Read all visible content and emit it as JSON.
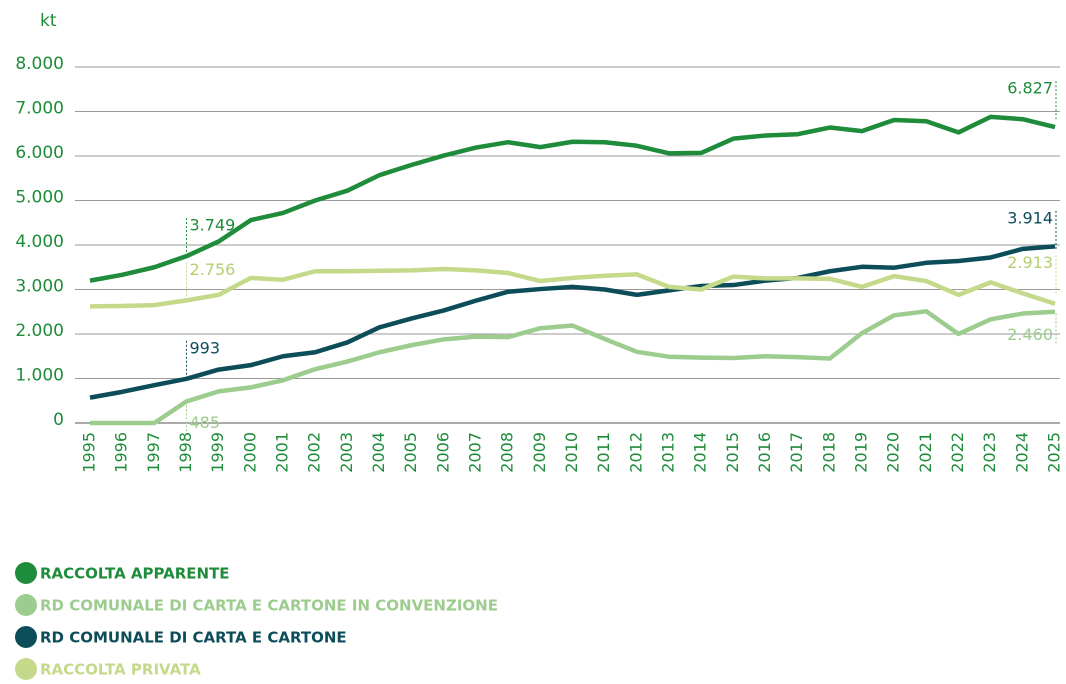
{
  "chart_data": {
    "type": "line",
    "y_unit": "kt",
    "categories": [
      "1995",
      "1996",
      "1997",
      "1998",
      "1999",
      "2000",
      "2001",
      "2002",
      "2003",
      "2004",
      "2005",
      "2006",
      "2007",
      "2008",
      "2009",
      "2010",
      "2011",
      "2012",
      "2013",
      "2014",
      "2015",
      "2016",
      "2017",
      "2018",
      "2019",
      "2020",
      "2021",
      "2022",
      "2023",
      "2024",
      "2025"
    ],
    "ylim": [
      0,
      8000
    ],
    "yticks": [
      0,
      {
        "value": 1000,
        "label": "1.000"
      },
      {
        "value": 2000,
        "label": "2.000"
      },
      {
        "value": 3000,
        "label": "3.000"
      },
      {
        "value": 4000,
        "label": "4.000"
      },
      {
        "value": 5000,
        "label": "5.000"
      },
      {
        "value": 6000,
        "label": "6.000"
      },
      {
        "value": 7000,
        "label": "7.000"
      },
      {
        "value": 8000,
        "label": "8.000"
      }
    ],
    "grid": true,
    "series": [
      {
        "name": "RACCOLTA APPARENTE",
        "color": "#1e8c3a",
        "values": [
          3200,
          3330,
          3500,
          3749,
          4080,
          4560,
          4720,
          5000,
          5220,
          5570,
          5800,
          6010,
          6190,
          6310,
          6200,
          6320,
          6310,
          6230,
          6060,
          6070,
          6390,
          6460,
          6490,
          6640,
          6560,
          6810,
          6780,
          6530,
          6880,
          6827,
          6650
        ],
        "value_labels": [
          null,
          null,
          null,
          "3.749",
          null,
          null,
          null,
          null,
          null,
          null,
          null,
          null,
          null,
          null,
          null,
          null,
          null,
          null,
          null,
          null,
          null,
          null,
          null,
          null,
          null,
          null,
          null,
          null,
          null,
          "6.827",
          null
        ]
      },
      {
        "name": "RD COMUNALE DI CARTA E CARTONE IN CONVENZIONE",
        "color": "#9ccc8e",
        "values": [
          0,
          0,
          0,
          485,
          710,
          800,
          960,
          1210,
          1380,
          1590,
          1750,
          1880,
          1940,
          1930,
          2130,
          2190,
          1890,
          1600,
          1490,
          1470,
          1460,
          1500,
          1480,
          1450,
          2020,
          2420,
          2510,
          2000,
          2330,
          2460,
          2500
        ],
        "value_labels": [
          null,
          null,
          null,
          "485",
          null,
          null,
          null,
          null,
          null,
          null,
          null,
          null,
          null,
          null,
          null,
          null,
          null,
          null,
          null,
          null,
          null,
          null,
          null,
          null,
          null,
          null,
          null,
          null,
          null,
          "2.460",
          null
        ]
      },
      {
        "name": "RD COMUNALE DI CARTA E CARTONE",
        "color": "#0d4d5a",
        "values": [
          570,
          700,
          850,
          993,
          1200,
          1300,
          1500,
          1590,
          1810,
          2150,
          2350,
          2530,
          2750,
          2950,
          3010,
          3060,
          3000,
          2880,
          2980,
          3080,
          3100,
          3200,
          3260,
          3410,
          3510,
          3490,
          3600,
          3640,
          3720,
          3914,
          3970
        ],
        "value_labels": [
          null,
          null,
          null,
          "993",
          null,
          null,
          null,
          null,
          null,
          null,
          null,
          null,
          null,
          null,
          null,
          null,
          null,
          null,
          null,
          null,
          null,
          null,
          null,
          null,
          null,
          null,
          null,
          null,
          null,
          "3.914",
          null
        ]
      },
      {
        "name": "RACCOLTA PRIVATA",
        "color": "#c5d98a",
        "values": [
          2620,
          2630,
          2650,
          2756,
          2880,
          3260,
          3220,
          3410,
          3410,
          3420,
          3430,
          3460,
          3430,
          3370,
          3190,
          3260,
          3310,
          3340,
          3060,
          3000,
          3290,
          3250,
          3250,
          3240,
          3060,
          3300,
          3190,
          2880,
          3160,
          2913,
          2680
        ],
        "value_labels": [
          null,
          null,
          null,
          "2.756",
          null,
          null,
          null,
          null,
          null,
          null,
          null,
          null,
          null,
          null,
          null,
          null,
          null,
          null,
          null,
          null,
          null,
          null,
          null,
          null,
          null,
          null,
          null,
          null,
          null,
          "2.913",
          null
        ]
      }
    ]
  }
}
